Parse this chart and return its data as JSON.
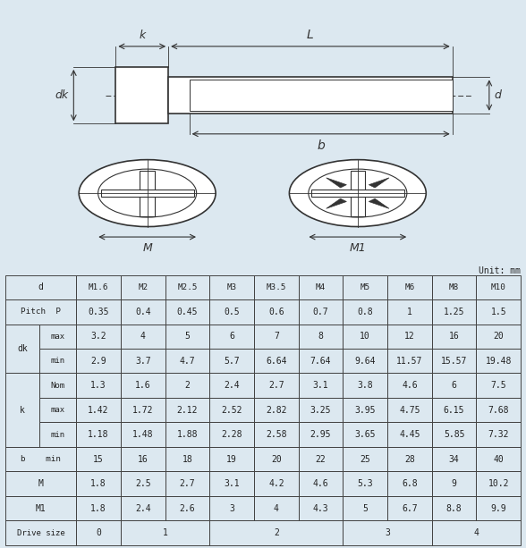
{
  "bg_color": "#dce8f0",
  "table_bg": "#ffffff",
  "line_color": "#333333",
  "text_color": "#222222",
  "col_headers": [
    "M1.6",
    "M2",
    "M2.5",
    "M3",
    "M3.5",
    "M4",
    "M5",
    "M6",
    "M8",
    "M10"
  ],
  "rows_data": [
    [
      "0.35",
      "0.4",
      "0.45",
      "0.5",
      "0.6",
      "0.7",
      "0.8",
      "1",
      "1.25",
      "1.5"
    ],
    [
      "3.2",
      "4",
      "5",
      "6",
      "7",
      "8",
      "10",
      "12",
      "16",
      "20"
    ],
    [
      "2.9",
      "3.7",
      "4.7",
      "5.7",
      "6.64",
      "7.64",
      "9.64",
      "11.57",
      "15.57",
      "19.48"
    ],
    [
      "1.3",
      "1.6",
      "2",
      "2.4",
      "2.7",
      "3.1",
      "3.8",
      "4.6",
      "6",
      "7.5"
    ],
    [
      "1.42",
      "1.72",
      "2.12",
      "2.52",
      "2.82",
      "3.25",
      "3.95",
      "4.75",
      "6.15",
      "7.68"
    ],
    [
      "1.18",
      "1.48",
      "1.88",
      "2.28",
      "2.58",
      "2.95",
      "3.65",
      "4.45",
      "5.85",
      "7.32"
    ],
    [
      "15",
      "16",
      "18",
      "19",
      "20",
      "22",
      "25",
      "28",
      "34",
      "40"
    ],
    [
      "1.8",
      "2.5",
      "2.7",
      "3.1",
      "4.2",
      "4.6",
      "5.3",
      "6.8",
      "9",
      "10.2"
    ],
    [
      "1.8",
      "2.4",
      "2.6",
      "3",
      "4",
      "4.3",
      "5",
      "6.7",
      "8.8",
      "9.9"
    ]
  ],
  "drive_spans": [
    [
      "0",
      0,
      0
    ],
    [
      "1",
      1,
      2
    ],
    [
      "2",
      3,
      5
    ],
    [
      "3",
      6,
      7
    ],
    [
      "4",
      8,
      9
    ]
  ],
  "unit_text": "Unit: mm",
  "diagram_bg": "#dce8f0"
}
